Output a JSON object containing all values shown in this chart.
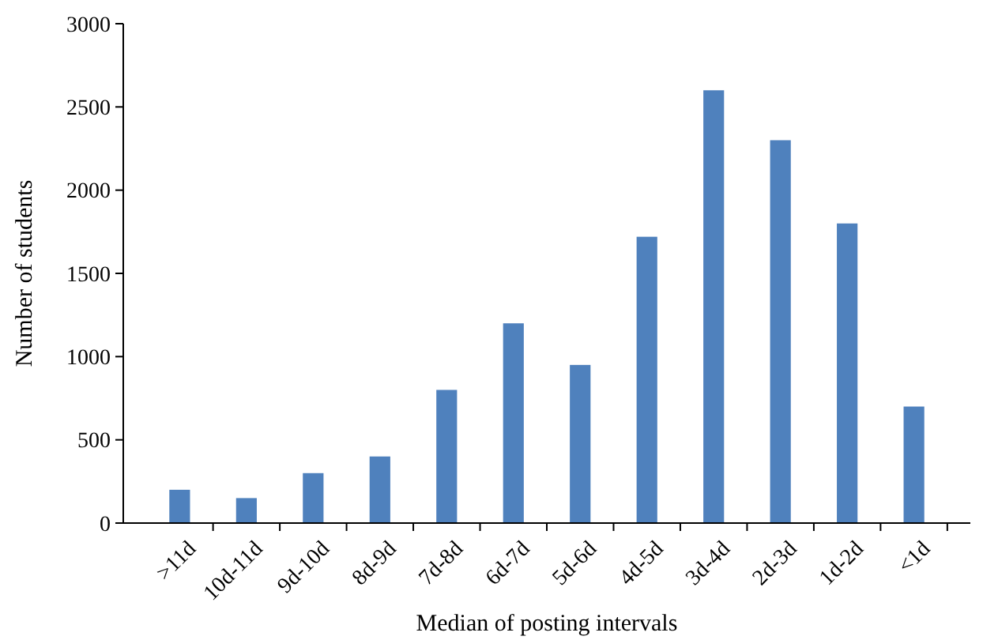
{
  "chart_data": {
    "type": "bar",
    "xlabel": "Median of posting intervals",
    "ylabel": "Number of students",
    "categories": [
      ">11d",
      "10d-11d",
      "9d-10d",
      "8d-9d",
      "7d-8d",
      "6d-7d",
      "5d-6d",
      "4d-5d",
      "3d-4d",
      "2d-3d",
      "1d-2d",
      "<1d"
    ],
    "values": [
      200,
      150,
      300,
      400,
      800,
      1200,
      950,
      1720,
      2600,
      2300,
      1800,
      700
    ],
    "color": "#4f81bd",
    "ylim": [
      0,
      3000
    ],
    "yticks": [
      0,
      500,
      1000,
      1500,
      2000,
      2500,
      3000
    ],
    "grid": false
  }
}
